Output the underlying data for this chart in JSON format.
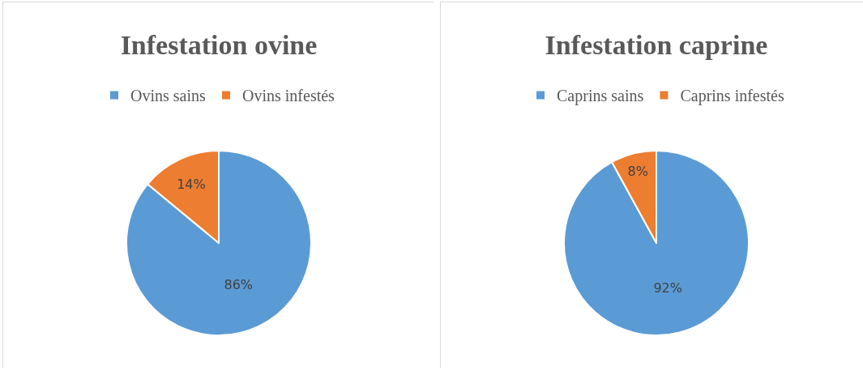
{
  "chart_data": [
    {
      "type": "pie",
      "title": "Infestation ovine",
      "categories": [
        "Ovins sains",
        "Ovins infestés"
      ],
      "values": [
        86,
        14
      ],
      "colors": [
        "#5b9bd5",
        "#ed7d31"
      ],
      "value_labels": [
        "86%",
        "14%"
      ],
      "legend": "top"
    },
    {
      "type": "pie",
      "title": "Infestation caprine",
      "categories": [
        "Caprins sains",
        "Caprins infestés"
      ],
      "values": [
        92,
        8
      ],
      "colors": [
        "#5b9bd5",
        "#ed7d31"
      ],
      "value_labels": [
        "92%",
        "8%"
      ],
      "legend": "top"
    }
  ]
}
